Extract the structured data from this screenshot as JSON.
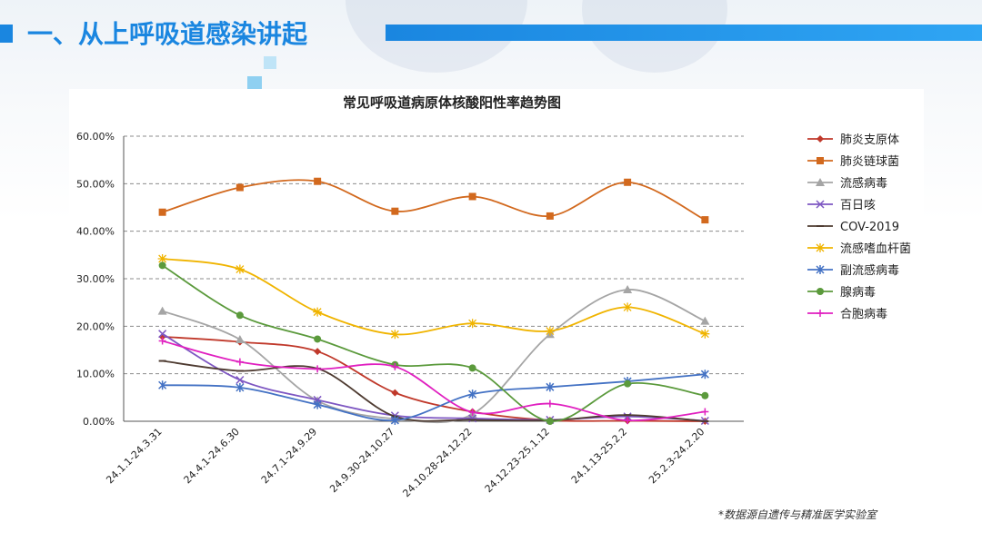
{
  "header": {
    "title": "一、从上呼吸道感染讲起",
    "accent_color": "#1a86e0"
  },
  "footnote": "*数据源自遗传与精准医学实验室",
  "chart_data": {
    "type": "line",
    "title": "常见呼吸道病原体核酸阳性率趋势图",
    "xlabel": "",
    "ylabel": "",
    "ylim": [
      0,
      60
    ],
    "yticks": [
      0,
      10,
      20,
      30,
      40,
      50,
      60
    ],
    "ytick_labels": [
      "0.00%",
      "10.00%",
      "20.00%",
      "30.00%",
      "40.00%",
      "50.00%",
      "60.00%"
    ],
    "grid": true,
    "legend_position": "right",
    "categories": [
      "24.1.1-24.3.31",
      "24.4.1-24.6.30",
      "24.7.1-24.9.29",
      "24.9.30-24.10.27",
      "24.10.28-24.12.22",
      "24.12.23-25.1.12",
      "24.1.13-25.2.2",
      "25.2.3-24.2.20"
    ],
    "series": [
      {
        "name": "肺炎支原体",
        "color": "#c0392b",
        "marker": "diamond",
        "values": [
          17.8,
          16.7,
          14.7,
          6.0,
          2.0,
          0.2,
          0.1,
          0.0
        ]
      },
      {
        "name": "肺炎链球菌",
        "color": "#d2691e",
        "marker": "square",
        "values": [
          44.0,
          49.2,
          50.5,
          44.2,
          47.3,
          43.2,
          50.3,
          42.4
        ]
      },
      {
        "name": "流感病毒",
        "color": "#a5a5a5",
        "marker": "triangle",
        "values": [
          23.2,
          17.2,
          4.3,
          0.5,
          1.5,
          18.3,
          27.7,
          21.1
        ]
      },
      {
        "name": "百日咳",
        "color": "#7e57c2",
        "marker": "cross",
        "values": [
          18.4,
          8.7,
          4.5,
          1.2,
          0.6,
          0.3,
          1.0,
          0.1
        ]
      },
      {
        "name": "COV-2019",
        "color": "#4e3b31",
        "marker": "line",
        "values": [
          12.7,
          10.6,
          11.1,
          1.0,
          0.3,
          0.2,
          1.3,
          0.0
        ]
      },
      {
        "name": "流感嗜血杆菌",
        "color": "#f0b400",
        "marker": "star",
        "values": [
          34.2,
          32.0,
          23.0,
          18.3,
          20.6,
          19.0,
          24.0,
          18.4
        ]
      },
      {
        "name": "副流感病毒",
        "color": "#4472c4",
        "marker": "asterisk",
        "values": [
          7.6,
          7.1,
          3.5,
          0.2,
          5.7,
          7.2,
          8.4,
          9.9
        ]
      },
      {
        "name": "腺病毒",
        "color": "#5b9a3c",
        "marker": "circle",
        "values": [
          32.8,
          22.3,
          17.3,
          11.9,
          11.2,
          0.0,
          7.9,
          5.4
        ]
      },
      {
        "name": "合胞病毒",
        "color": "#e020c0",
        "marker": "plus",
        "values": [
          16.9,
          12.5,
          11.0,
          11.5,
          1.9,
          3.7,
          0.2,
          2.0
        ]
      }
    ]
  }
}
